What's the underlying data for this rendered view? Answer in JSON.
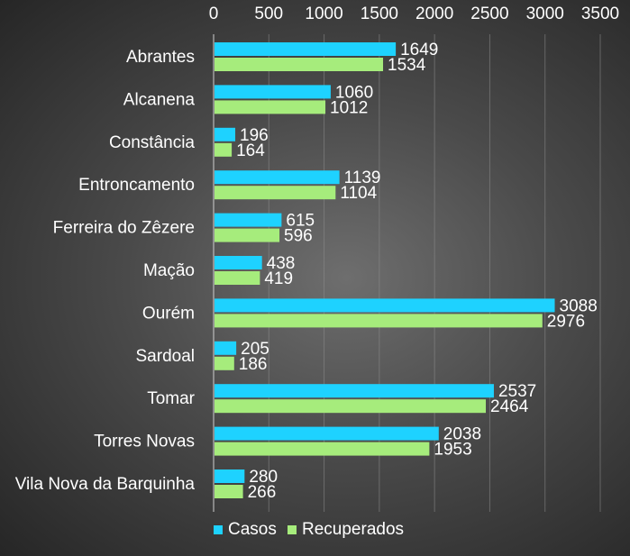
{
  "chart_data": {
    "type": "bar",
    "orientation": "horizontal",
    "categories": [
      "Abrantes",
      "Alcanena",
      "Constância",
      "Entroncamento",
      "Ferreira do Zêzere",
      "Mação",
      "Ourém",
      "Sardoal",
      "Tomar",
      "Torres Novas",
      "Vila Nova da Barquinha"
    ],
    "series": [
      {
        "name": "Casos",
        "color": "#1ed2ff",
        "values": [
          1649,
          1060,
          196,
          1139,
          615,
          438,
          3088,
          205,
          2537,
          2038,
          280
        ]
      },
      {
        "name": "Recuperados",
        "color": "#a6ec7c",
        "values": [
          1534,
          1012,
          164,
          1104,
          596,
          419,
          2976,
          186,
          2464,
          1953,
          266
        ]
      }
    ],
    "x_ticks": [
      "0",
      "500",
      "1000",
      "1500",
      "2000",
      "2500",
      "3000",
      "3500"
    ],
    "xlim": [
      0,
      3500
    ],
    "x_axis_position": "top",
    "grid": true,
    "data_labels": true,
    "legend_position": "bottom-left"
  }
}
